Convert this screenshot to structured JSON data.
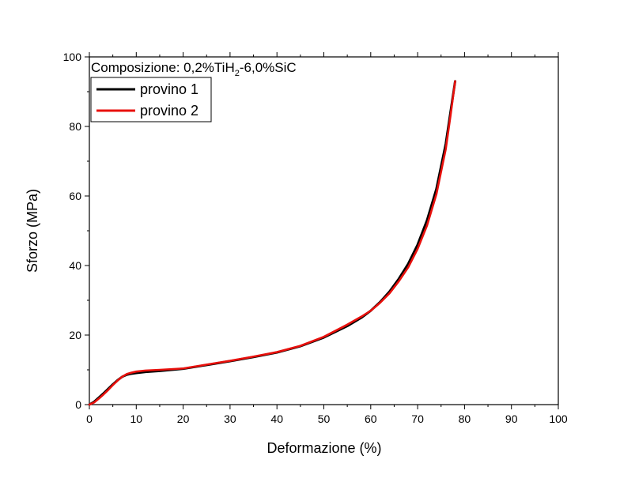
{
  "chart_data": {
    "type": "line",
    "title": "",
    "annotation": {
      "prefix": "Composizione: 0,2%TiH",
      "subscript": "2",
      "suffix": "-6,0%SiC"
    },
    "xlabel": "Deformazione (%)",
    "ylabel": "Sforzo (MPa)",
    "xlim": [
      0,
      100
    ],
    "ylim": [
      0,
      100
    ],
    "xticks": [
      0,
      10,
      20,
      30,
      40,
      50,
      60,
      70,
      80,
      90,
      100
    ],
    "yticks": [
      0,
      20,
      40,
      60,
      80,
      100
    ],
    "grid": false,
    "legend": {
      "position": "top-left"
    },
    "series": [
      {
        "name": "provino 1",
        "color": "#000000",
        "x": [
          0,
          1,
          2,
          3,
          4,
          5,
          6,
          7,
          8,
          9,
          10,
          12,
          15,
          20,
          25,
          30,
          35,
          40,
          45,
          50,
          55,
          58,
          60,
          62,
          64,
          66,
          68,
          70,
          72,
          74,
          76,
          77,
          78
        ],
        "y": [
          0,
          0.8,
          2.0,
          3.2,
          4.5,
          5.8,
          7.0,
          8.0,
          8.6,
          8.9,
          9.1,
          9.4,
          9.7,
          10.3,
          11.4,
          12.5,
          13.7,
          15.0,
          16.8,
          19.3,
          22.6,
          25.0,
          27.0,
          29.5,
          32.5,
          36.2,
          40.5,
          46.0,
          53.0,
          62.0,
          75.0,
          84.0,
          93.0
        ]
      },
      {
        "name": "provino 2",
        "color": "#e8100c",
        "x": [
          0,
          1,
          2,
          3,
          4,
          5,
          6,
          7,
          8,
          9,
          10,
          12,
          15,
          20,
          25,
          30,
          35,
          40,
          45,
          50,
          55,
          58,
          60,
          62,
          64,
          66,
          68,
          70,
          72,
          74,
          76,
          77,
          78
        ],
        "y": [
          0,
          0.6,
          1.7,
          2.9,
          4.2,
          5.6,
          6.9,
          8.0,
          8.8,
          9.2,
          9.5,
          9.8,
          10.0,
          10.4,
          11.5,
          12.6,
          13.8,
          15.1,
          16.9,
          19.5,
          23.0,
          25.3,
          27.0,
          29.3,
          32.0,
          35.5,
          39.5,
          44.8,
          51.5,
          60.5,
          73.5,
          83.0,
          93.0
        ]
      }
    ]
  }
}
